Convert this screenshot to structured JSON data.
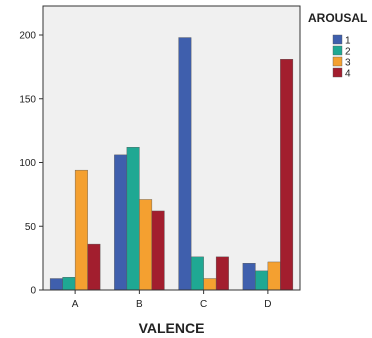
{
  "chart_data": {
    "type": "bar",
    "categories": [
      "A",
      "B",
      "C",
      "D"
    ],
    "series": [
      {
        "name": "1",
        "color": "#3f5fad",
        "values": [
          9,
          106,
          198,
          21
        ]
      },
      {
        "name": "2",
        "color": "#1fa893",
        "values": [
          10,
          112,
          26,
          15
        ]
      },
      {
        "name": "3",
        "color": "#f4a030",
        "values": [
          94,
          71,
          9,
          22
        ]
      },
      {
        "name": "4",
        "color": "#a21e2e",
        "values": [
          36,
          62,
          26,
          181
        ]
      }
    ],
    "title": "",
    "xlabel": "VALENCE",
    "ylabel": "",
    "ylim": [
      0,
      200
    ],
    "yticks": [
      0,
      50,
      100,
      150,
      200
    ],
    "grid": false,
    "legend": {
      "title": "AROUSAL",
      "placement": "right"
    },
    "plot_background": "#f0f0f0"
  }
}
